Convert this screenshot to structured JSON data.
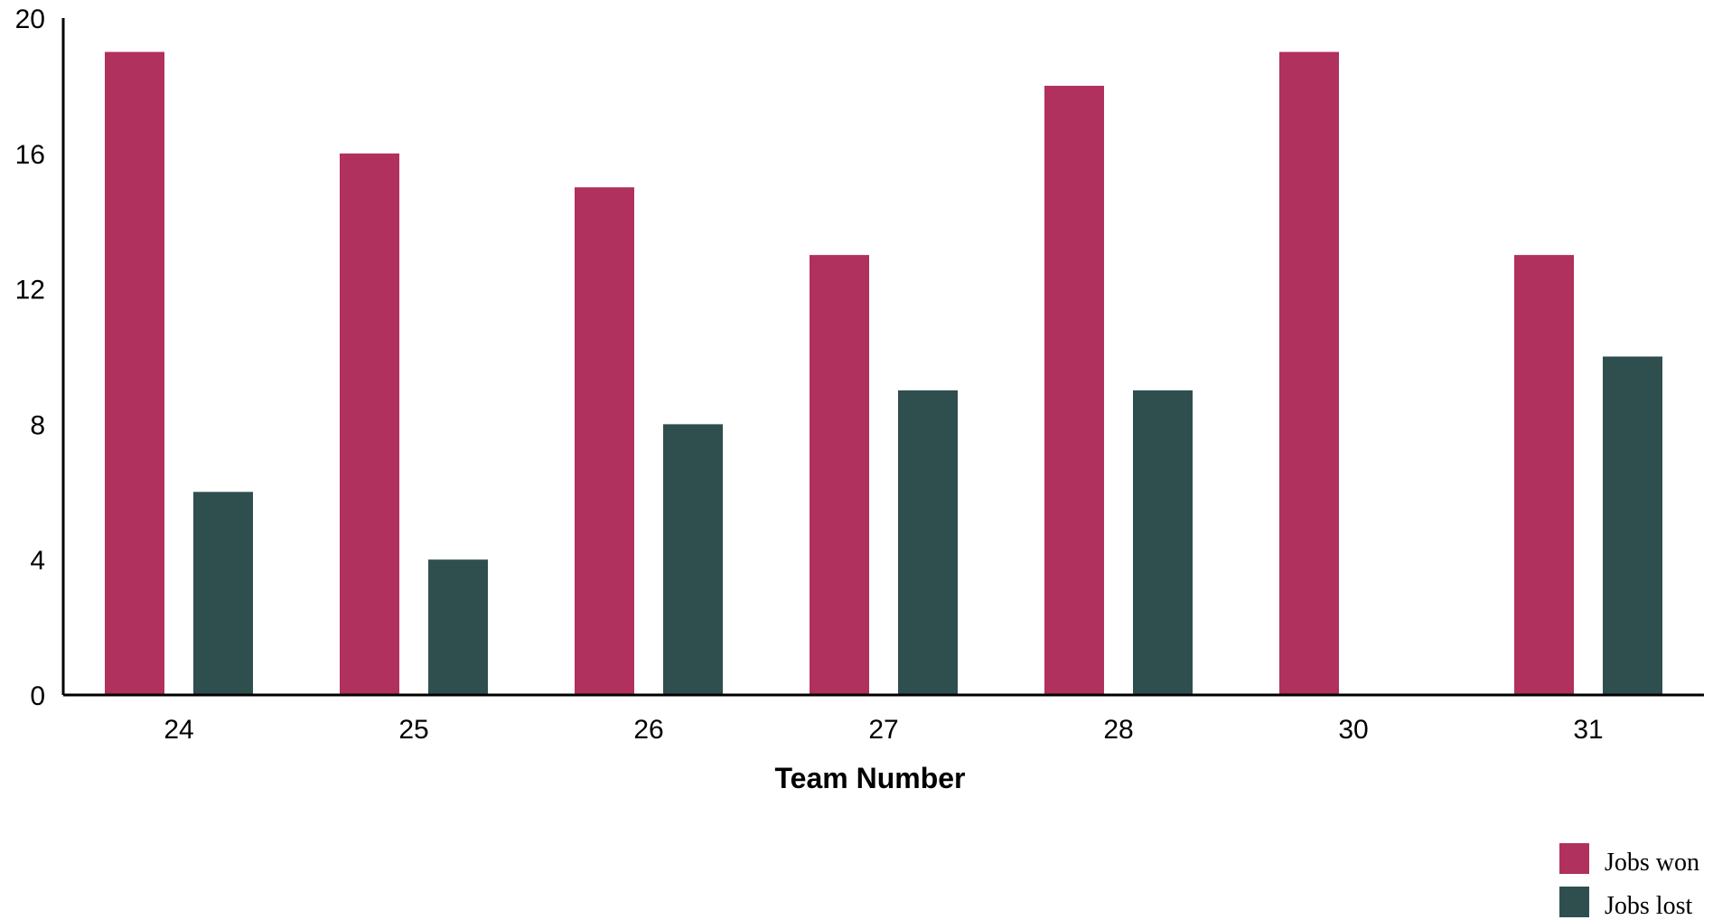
{
  "chart_data": {
    "type": "bar",
    "title": "",
    "xlabel": "Team Number",
    "ylabel": "",
    "categories": [
      "24",
      "25",
      "26",
      "27",
      "28",
      "30",
      "31"
    ],
    "series": [
      {
        "name": "Jobs won",
        "color": "#b0305e",
        "values": [
          19,
          16,
          15,
          13,
          18,
          19,
          13
        ]
      },
      {
        "name": "Jobs lost",
        "color": "#2f4f4f",
        "values": [
          6,
          4,
          8,
          9,
          9,
          0,
          10
        ]
      }
    ],
    "ylim": [
      0,
      20
    ],
    "yticks": [
      "0",
      "4",
      "8",
      "12",
      "16",
      "20"
    ],
    "grid": false,
    "legend_position": "bottom-right"
  }
}
